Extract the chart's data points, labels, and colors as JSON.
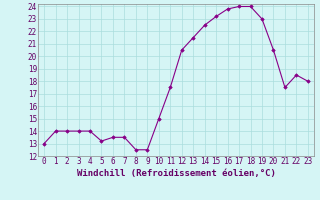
{
  "x": [
    0,
    1,
    2,
    3,
    4,
    5,
    6,
    7,
    8,
    9,
    10,
    11,
    12,
    13,
    14,
    15,
    16,
    17,
    18,
    19,
    20,
    21,
    22,
    23
  ],
  "y": [
    13,
    14,
    14,
    14,
    14,
    13.2,
    13.5,
    13.5,
    12.5,
    12.5,
    15,
    17.5,
    20.5,
    21.5,
    22.5,
    23.2,
    23.8,
    24,
    24,
    23,
    20.5,
    17.5,
    18.5,
    18
  ],
  "ylim_min": 12,
  "ylim_max": 24,
  "yticks": [
    12,
    13,
    14,
    15,
    16,
    17,
    18,
    19,
    20,
    21,
    22,
    23,
    24
  ],
  "xticks": [
    0,
    1,
    2,
    3,
    4,
    5,
    6,
    7,
    8,
    9,
    10,
    11,
    12,
    13,
    14,
    15,
    16,
    17,
    18,
    19,
    20,
    21,
    22,
    23
  ],
  "line_color": "#880088",
  "marker": "D",
  "marker_size": 1.8,
  "bg_color": "#d5f5f5",
  "grid_color": "#aadddd",
  "xlabel": "Windchill (Refroidissement éolien,°C)",
  "xlabel_fontsize": 6.5,
  "tick_fontsize": 5.5,
  "linewidth": 0.8
}
